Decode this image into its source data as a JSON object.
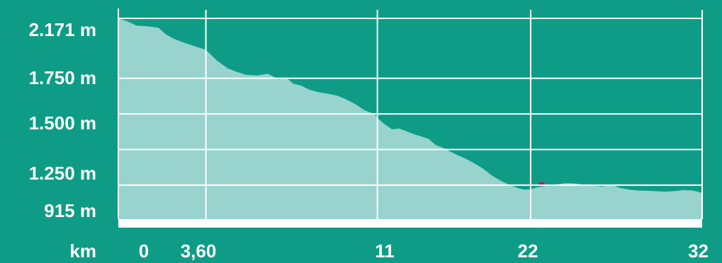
{
  "colors": {
    "background": "#0f9c86",
    "area_fill": "#98d3ce",
    "grid": "#ffffff",
    "tick_text": "#ffffff",
    "marker": "#c2185b"
  },
  "chart_data": {
    "type": "area",
    "title": "",
    "xlabel": "km",
    "ylabel": "",
    "xlim": [
      0,
      32
    ],
    "ylim": [
      915,
      2171
    ],
    "x_ticks": [
      {
        "value": 0,
        "label": "0"
      },
      {
        "value": 3.6,
        "label": "3,60"
      },
      {
        "value": 11,
        "label": "11"
      },
      {
        "value": 22,
        "label": "22"
      },
      {
        "value": 32,
        "label": "32"
      }
    ],
    "y_ticks": [
      {
        "value": 915,
        "label": "915 m"
      },
      {
        "value": 1250,
        "label": "1.250 m"
      },
      {
        "value": 1500,
        "label": "1.500 m"
      },
      {
        "value": 1750,
        "label": "1.750 m"
      },
      {
        "value": 2171,
        "label": "2.171 m"
      }
    ],
    "x_grid_values": [
      4.8,
      14.2,
      22.6,
      32
    ],
    "y_grid_values": [
      1000,
      1250,
      1500,
      1750,
      2171
    ],
    "grid": true,
    "series": [
      {
        "x": [
          0,
          0.5,
          1.0,
          1.6,
          2.2,
          2.6,
          3.0,
          3.6,
          4.2,
          4.8,
          5.4,
          6.0,
          6.5,
          7.0,
          7.6,
          8.2,
          8.8,
          9.2,
          9.6,
          10.0,
          10.5,
          11.0,
          11.5,
          12.0,
          12.5,
          13.0,
          13.5,
          14.0,
          14.3,
          14.6,
          15.0,
          15.4,
          15.8,
          16.2,
          16.6,
          17.0,
          17.4,
          17.8,
          18.2,
          18.6,
          19.0,
          19.5,
          20.0,
          20.5,
          21.0,
          21.5,
          22.0,
          22.3,
          22.6,
          23.0,
          23.5,
          24.0,
          24.5,
          25.0,
          25.5,
          26.0,
          26.5,
          27.0,
          27.5,
          28.0,
          28.5,
          29.0,
          29.5,
          30.0,
          30.5,
          31.0,
          31.5,
          32.0
        ],
        "y": [
          2171,
          2150,
          2120,
          2115,
          2105,
          2060,
          2030,
          2000,
          1975,
          1950,
          1875,
          1820,
          1795,
          1775,
          1770,
          1782,
          1742,
          1755,
          1712,
          1700,
          1668,
          1652,
          1642,
          1628,
          1602,
          1568,
          1525,
          1502,
          1460,
          1428,
          1392,
          1398,
          1378,
          1358,
          1342,
          1325,
          1282,
          1262,
          1235,
          1210,
          1188,
          1155,
          1115,
          1065,
          1028,
          998,
          975,
          968,
          972,
          986,
          996,
          1005,
          1014,
          1012,
          1004,
          997,
          990,
          1004,
          980,
          968,
          962,
          960,
          957,
          954,
          958,
          966,
          962,
          945
        ]
      }
    ],
    "markers": [
      {
        "x": 23.2,
        "y": 1012
      }
    ]
  }
}
